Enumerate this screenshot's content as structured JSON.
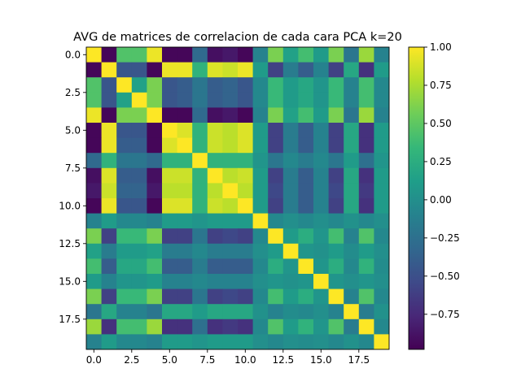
{
  "chart_data": {
    "type": "heatmap",
    "title": "AVG de matrices de correlacion de cada cara PCA k=20",
    "xlabel": "",
    "ylabel": "",
    "size": 20,
    "colormap": "viridis",
    "colorbar": {
      "range": [
        -0.98,
        1.0
      ],
      "ticks": [
        1.0,
        0.75,
        0.5,
        0.25,
        0.0,
        -0.25,
        -0.5,
        -0.75
      ],
      "tick_labels": [
        "1.00",
        "0.75",
        "0.50",
        "0.25",
        "0.00",
        "−0.25",
        "−0.50",
        "−0.75"
      ]
    },
    "x_ticks": [
      0,
      2.5,
      5,
      7.5,
      10,
      12.5,
      15,
      17.5
    ],
    "x_tick_labels": [
      "0.0",
      "2.5",
      "5.0",
      "7.5",
      "10.0",
      "12.5",
      "15.0",
      "17.5"
    ],
    "y_ticks": [
      0,
      2.5,
      5,
      7.5,
      10,
      12.5,
      15,
      17.5
    ],
    "y_tick_labels": [
      "0.0",
      "2.5",
      "5.0",
      "7.5",
      "10.0",
      "12.5",
      "15.0",
      "17.5"
    ],
    "matrix": [
      [
        1.0,
        -0.95,
        0.45,
        0.45,
        0.95,
        -0.95,
        -0.95,
        -0.3,
        -0.9,
        -0.85,
        -0.95,
        -0.1,
        0.6,
        0.15,
        0.4,
        0.1,
        0.6,
        -0.2,
        0.7,
        -0.1
      ],
      [
        -0.95,
        1.0,
        -0.45,
        -0.45,
        -0.95,
        0.95,
        0.95,
        0.3,
        0.9,
        0.85,
        0.95,
        0.1,
        -0.6,
        -0.15,
        -0.4,
        -0.1,
        -0.6,
        0.2,
        -0.7,
        0.1
      ],
      [
        0.45,
        -0.45,
        1.0,
        0.15,
        0.6,
        -0.45,
        -0.4,
        -0.2,
        -0.4,
        -0.35,
        -0.45,
        -0.05,
        0.35,
        0.1,
        0.2,
        0.05,
        0.35,
        -0.1,
        0.4,
        -0.05
      ],
      [
        0.45,
        -0.45,
        0.15,
        1.0,
        0.6,
        -0.45,
        -0.4,
        -0.2,
        -0.4,
        -0.35,
        -0.45,
        -0.05,
        0.35,
        0.1,
        0.2,
        0.05,
        0.35,
        -0.1,
        0.4,
        -0.05
      ],
      [
        0.95,
        -0.95,
        0.6,
        0.6,
        1.0,
        -0.95,
        -0.95,
        -0.3,
        -0.9,
        -0.85,
        -0.95,
        -0.1,
        0.6,
        0.15,
        0.4,
        0.1,
        0.6,
        -0.2,
        0.7,
        -0.1
      ],
      [
        -0.95,
        0.95,
        -0.45,
        -0.45,
        -0.95,
        1.0,
        0.9,
        0.3,
        0.85,
        0.8,
        0.9,
        0.1,
        -0.6,
        -0.15,
        -0.4,
        -0.1,
        -0.6,
        0.2,
        -0.7,
        0.1
      ],
      [
        -0.95,
        0.95,
        -0.4,
        -0.4,
        -0.95,
        0.9,
        1.0,
        0.3,
        0.85,
        0.8,
        0.9,
        0.1,
        -0.6,
        -0.15,
        -0.4,
        -0.1,
        -0.6,
        0.2,
        -0.7,
        0.1
      ],
      [
        -0.3,
        0.3,
        -0.2,
        -0.2,
        -0.3,
        0.3,
        0.3,
        1.0,
        0.3,
        0.3,
        0.3,
        0.05,
        -0.2,
        -0.05,
        -0.15,
        -0.05,
        -0.2,
        0.1,
        -0.25,
        0.05
      ],
      [
        -0.9,
        0.9,
        -0.4,
        -0.4,
        -0.9,
        0.85,
        0.85,
        0.3,
        1.0,
        0.8,
        0.85,
        0.1,
        -0.6,
        -0.15,
        -0.4,
        -0.1,
        -0.6,
        0.2,
        -0.7,
        0.1
      ],
      [
        -0.85,
        0.85,
        -0.35,
        -0.35,
        -0.85,
        0.8,
        0.8,
        0.3,
        0.8,
        1.0,
        0.8,
        0.1,
        -0.55,
        -0.15,
        -0.4,
        -0.1,
        -0.55,
        0.2,
        -0.65,
        0.1
      ],
      [
        -0.95,
        0.95,
        -0.45,
        -0.45,
        -0.95,
        0.9,
        0.9,
        0.3,
        0.85,
        0.8,
        1.0,
        0.1,
        -0.6,
        -0.15,
        -0.4,
        -0.1,
        -0.6,
        0.2,
        -0.7,
        0.1
      ],
      [
        -0.1,
        0.1,
        -0.05,
        -0.05,
        -0.1,
        0.1,
        0.1,
        0.05,
        0.1,
        0.1,
        0.1,
        1.0,
        -0.05,
        0.0,
        -0.05,
        0.0,
        -0.05,
        0.02,
        -0.05,
        0.0
      ],
      [
        0.6,
        -0.6,
        0.35,
        0.35,
        0.6,
        -0.6,
        -0.6,
        -0.2,
        -0.6,
        -0.55,
        -0.6,
        -0.05,
        1.0,
        0.1,
        0.25,
        0.05,
        0.4,
        -0.1,
        0.45,
        -0.05
      ],
      [
        0.15,
        -0.15,
        0.1,
        0.1,
        0.15,
        -0.15,
        -0.15,
        -0.05,
        -0.15,
        -0.15,
        -0.15,
        0.0,
        0.1,
        1.0,
        0.05,
        0.02,
        0.1,
        -0.02,
        0.1,
        0.0
      ],
      [
        0.4,
        -0.4,
        0.2,
        0.2,
        0.4,
        -0.4,
        -0.4,
        -0.15,
        -0.4,
        -0.4,
        -0.4,
        -0.05,
        0.25,
        0.05,
        1.0,
        0.05,
        0.25,
        -0.05,
        0.3,
        -0.02
      ],
      [
        0.1,
        -0.1,
        0.05,
        0.05,
        0.1,
        -0.1,
        -0.1,
        -0.05,
        -0.1,
        -0.1,
        -0.1,
        0.0,
        0.05,
        0.02,
        0.05,
        1.0,
        0.05,
        0.0,
        0.05,
        0.0
      ],
      [
        0.6,
        -0.6,
        0.35,
        0.35,
        0.6,
        -0.6,
        -0.6,
        -0.2,
        -0.6,
        -0.55,
        -0.6,
        -0.05,
        0.4,
        0.1,
        0.25,
        0.05,
        1.0,
        -0.1,
        0.45,
        -0.05
      ],
      [
        -0.2,
        0.2,
        -0.1,
        -0.1,
        -0.2,
        0.2,
        0.2,
        0.1,
        0.2,
        0.2,
        0.2,
        0.02,
        -0.1,
        -0.02,
        -0.05,
        0.0,
        -0.1,
        1.0,
        -0.15,
        0.02
      ],
      [
        0.7,
        -0.7,
        0.4,
        0.4,
        0.7,
        -0.7,
        -0.7,
        -0.25,
        -0.7,
        -0.65,
        -0.7,
        -0.05,
        0.45,
        0.1,
        0.3,
        0.05,
        0.45,
        -0.15,
        1.0,
        -0.05
      ],
      [
        -0.1,
        0.1,
        -0.05,
        -0.05,
        -0.1,
        0.1,
        0.1,
        0.05,
        0.1,
        0.1,
        0.1,
        0.0,
        -0.05,
        0.0,
        -0.02,
        0.0,
        -0.05,
        0.02,
        -0.05,
        1.0
      ]
    ]
  }
}
